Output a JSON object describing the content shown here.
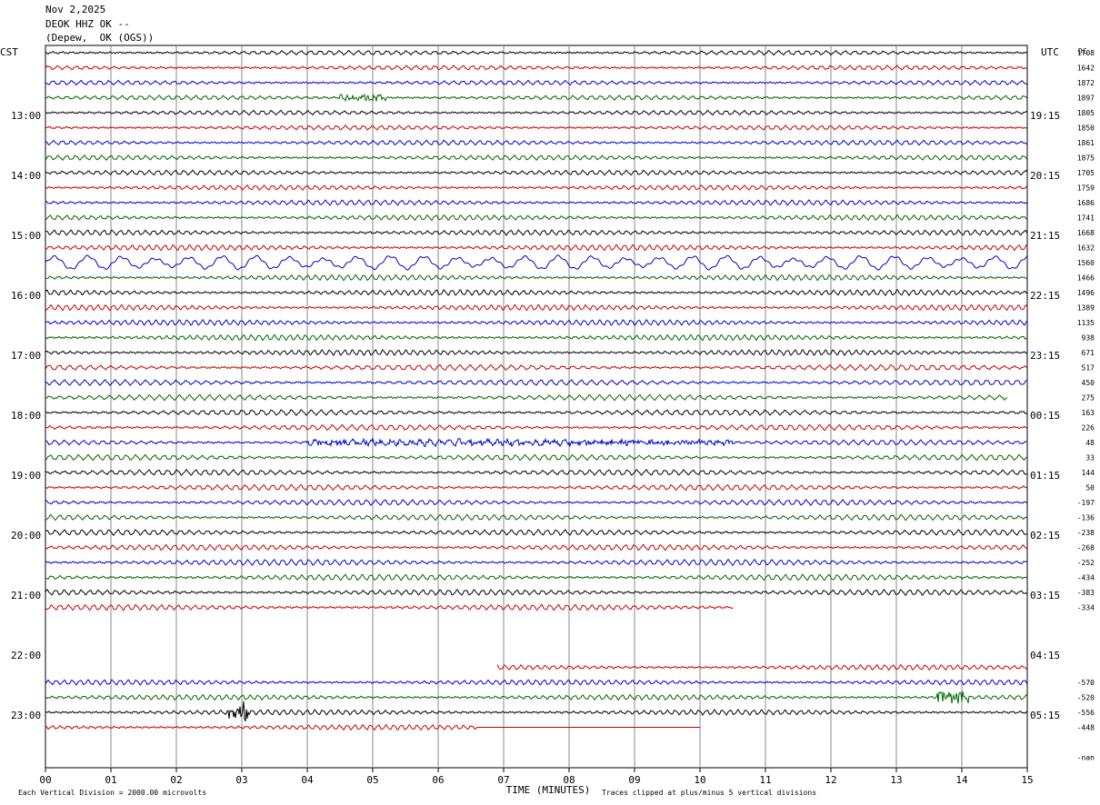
{
  "header": {
    "date": "Nov 2,2025",
    "station": "DEOK HHZ OK --",
    "location": "(Depew,  OK (OGS))"
  },
  "chart_data": {
    "type": "line",
    "title": "DEOK HHZ OK --",
    "left_axis_label": "CST",
    "right_axis_label": "UTC",
    "dc_label": "DC",
    "xlabel": "TIME (MINUTES)",
    "x_ticks": [
      "00",
      "01",
      "02",
      "03",
      "04",
      "05",
      "06",
      "07",
      "08",
      "09",
      "10",
      "11",
      "12",
      "13",
      "14",
      "15"
    ],
    "xlim": [
      0,
      15
    ],
    "footer_left": "Each Vertical Division = 2000.00 microvolts",
    "footer_right": "Traces clipped at plus/minus 5 vertical divisions",
    "cst_hour_labels": [
      {
        "row": 4,
        "label": "13:00"
      },
      {
        "row": 8,
        "label": "14:00"
      },
      {
        "row": 12,
        "label": "15:00"
      },
      {
        "row": 16,
        "label": "16:00"
      },
      {
        "row": 20,
        "label": "17:00"
      },
      {
        "row": 24,
        "label": "18:00"
      },
      {
        "row": 28,
        "label": "19:00"
      },
      {
        "row": 32,
        "label": "20:00"
      },
      {
        "row": 36,
        "label": "21:00"
      },
      {
        "row": 40,
        "label": "22:00"
      },
      {
        "row": 44,
        "label": "23:00"
      }
    ],
    "utc_hour_labels": [
      {
        "row": 4,
        "label": "19:15"
      },
      {
        "row": 8,
        "label": "20:15"
      },
      {
        "row": 12,
        "label": "21:15"
      },
      {
        "row": 16,
        "label": "22:15"
      },
      {
        "row": 20,
        "label": "23:15"
      },
      {
        "row": 24,
        "label": "00:15"
      },
      {
        "row": 28,
        "label": "01:15"
      },
      {
        "row": 32,
        "label": "02:15"
      },
      {
        "row": 36,
        "label": "03:15"
      },
      {
        "row": 40,
        "label": "04:15"
      },
      {
        "row": 44,
        "label": "05:15"
      }
    ],
    "colors": [
      "#000000",
      "#cc0000",
      "#0000cc",
      "#006600"
    ],
    "traces": [
      {
        "row": 0,
        "dc": "1708",
        "start": 0,
        "end": 15,
        "amp": 2.0
      },
      {
        "row": 1,
        "dc": "1642",
        "start": 0,
        "end": 15,
        "amp": 2.0
      },
      {
        "row": 2,
        "dc": "1872",
        "start": 0,
        "end": 15,
        "amp": 2.0
      },
      {
        "row": 3,
        "dc": "1897",
        "start": 0,
        "end": 15,
        "amp": 2.0,
        "event": [
          4.5,
          5.2,
          4
        ]
      },
      {
        "row": 4,
        "dc": "1805",
        "start": 0,
        "end": 15,
        "amp": 2.0
      },
      {
        "row": 5,
        "dc": "1850",
        "start": 0,
        "end": 15,
        "amp": 2.0
      },
      {
        "row": 6,
        "dc": "1861",
        "start": 0,
        "end": 15,
        "amp": 2.2
      },
      {
        "row": 7,
        "dc": "1875",
        "start": 0,
        "end": 15,
        "amp": 2.2
      },
      {
        "row": 8,
        "dc": "1705",
        "start": 0,
        "end": 15,
        "amp": 2.2
      },
      {
        "row": 9,
        "dc": "1759",
        "start": 0,
        "end": 15,
        "amp": 2.2
      },
      {
        "row": 10,
        "dc": "1686",
        "start": 0,
        "end": 15,
        "amp": 2.4
      },
      {
        "row": 11,
        "dc": "1741",
        "start": 0,
        "end": 15,
        "amp": 2.4
      },
      {
        "row": 12,
        "dc": "1668",
        "start": 0,
        "end": 15,
        "amp": 2.4
      },
      {
        "row": 13,
        "dc": "1632",
        "start": 0,
        "end": 15,
        "amp": 2.6
      },
      {
        "row": 14,
        "dc": "1560",
        "start": 0,
        "end": 15,
        "amp": 7.0,
        "slow": true
      },
      {
        "row": 15,
        "dc": "1466",
        "start": 0,
        "end": 15,
        "amp": 2.6
      },
      {
        "row": 16,
        "dc": "1496",
        "start": 0,
        "end": 15,
        "amp": 2.6
      },
      {
        "row": 17,
        "dc": "1389",
        "start": 0,
        "end": 15,
        "amp": 2.6
      },
      {
        "row": 18,
        "dc": "1135",
        "start": 0,
        "end": 15,
        "amp": 2.6
      },
      {
        "row": 19,
        "dc": "938",
        "start": 0,
        "end": 15,
        "amp": 2.6
      },
      {
        "row": 20,
        "dc": "671",
        "start": 0,
        "end": 15,
        "amp": 2.6
      },
      {
        "row": 21,
        "dc": "517",
        "start": 0,
        "end": 15,
        "amp": 2.6
      },
      {
        "row": 22,
        "dc": "450",
        "start": 0,
        "end": 15,
        "amp": 2.6
      },
      {
        "row": 23,
        "dc": "275",
        "start": 0,
        "end": 14.7,
        "amp": 2.6
      },
      {
        "row": 24,
        "dc": "163",
        "start": 0,
        "end": 15,
        "amp": 2.6
      },
      {
        "row": 25,
        "dc": "226",
        "start": 0,
        "end": 15,
        "amp": 2.6
      },
      {
        "row": 26,
        "dc": "48",
        "start": 0,
        "end": 15,
        "amp": 2.4,
        "event": [
          4.0,
          10.5,
          3
        ]
      },
      {
        "row": 27,
        "dc": "33",
        "start": 0,
        "end": 15,
        "amp": 2.6
      },
      {
        "row": 28,
        "dc": "144",
        "start": 0,
        "end": 15,
        "amp": 2.6
      },
      {
        "row": 29,
        "dc": "50",
        "start": 0,
        "end": 15,
        "amp": 2.6
      },
      {
        "row": 30,
        "dc": "-197",
        "start": 0,
        "end": 15,
        "amp": 2.6
      },
      {
        "row": 31,
        "dc": "-136",
        "start": 0,
        "end": 15,
        "amp": 2.6
      },
      {
        "row": 32,
        "dc": "-238",
        "start": 0,
        "end": 15,
        "amp": 2.6
      },
      {
        "row": 33,
        "dc": "-268",
        "start": 0,
        "end": 15,
        "amp": 2.6
      },
      {
        "row": 34,
        "dc": "-252",
        "start": 0,
        "end": 15,
        "amp": 2.8
      },
      {
        "row": 35,
        "dc": "-434",
        "start": 0,
        "end": 15,
        "amp": 2.8
      },
      {
        "row": 36,
        "dc": "-383",
        "start": 0,
        "end": 15,
        "amp": 2.6
      },
      {
        "row": 37,
        "dc": "-334",
        "start": 0,
        "end": 10.5,
        "amp": 2.6
      },
      {
        "row": 41,
        "dc": "",
        "start": 6.9,
        "end": 15,
        "amp": 2.4
      },
      {
        "row": 42,
        "dc": "-570",
        "start": 0,
        "end": 15,
        "amp": 2.4
      },
      {
        "row": 43,
        "dc": "-520",
        "start": 0,
        "end": 15,
        "amp": 2.4,
        "event": [
          13.6,
          14.1,
          8
        ]
      },
      {
        "row": 44,
        "dc": "-556",
        "start": 0,
        "end": 15,
        "amp": 2.4,
        "event": [
          2.8,
          3.1,
          14
        ]
      },
      {
        "row": 45,
        "dc": "-448",
        "start": 0,
        "end": 6.6,
        "amp": 2.4,
        "flat_to": 10.0
      },
      {
        "row": 47,
        "dc": "-nan",
        "start": 0,
        "end": 0,
        "amp": 0
      }
    ]
  }
}
